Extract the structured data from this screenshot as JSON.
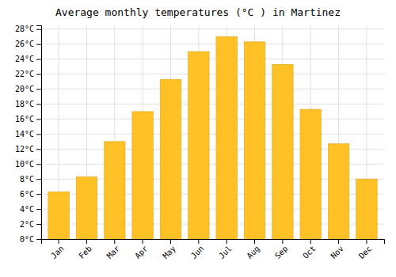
{
  "chart_data": {
    "type": "bar",
    "title": "Average monthly temperatures (°C ) in Martinez",
    "categories": [
      "Jan",
      "Feb",
      "Mar",
      "Apr",
      "May",
      "Jun",
      "Jul",
      "Aug",
      "Sep",
      "Oct",
      "Nov",
      "Dec"
    ],
    "values": [
      6.3,
      8.3,
      13.0,
      17.0,
      21.3,
      25.0,
      27.0,
      26.3,
      23.3,
      17.3,
      12.7,
      8.0
    ],
    "color": "#FFC125",
    "ylim": [
      0,
      28.5
    ],
    "yticks": [
      {
        "value": 0,
        "label": "0°C"
      },
      {
        "value": 2,
        "label": "2°C"
      },
      {
        "value": 4,
        "label": "4°C"
      },
      {
        "value": 6,
        "label": "6°C"
      },
      {
        "value": 8,
        "label": "8°C"
      },
      {
        "value": 10,
        "label": "10°C"
      },
      {
        "value": 12,
        "label": "12°C"
      },
      {
        "value": 14,
        "label": "14°C"
      },
      {
        "value": 16,
        "label": "16°C"
      },
      {
        "value": 18,
        "label": "18°C"
      },
      {
        "value": 20,
        "label": "20°C"
      },
      {
        "value": 22,
        "label": "22°C"
      },
      {
        "value": 24,
        "label": "24°C"
      },
      {
        "value": 26,
        "label": "26°C"
      },
      {
        "value": 28,
        "label": "28°C"
      }
    ],
    "grid": true
  }
}
